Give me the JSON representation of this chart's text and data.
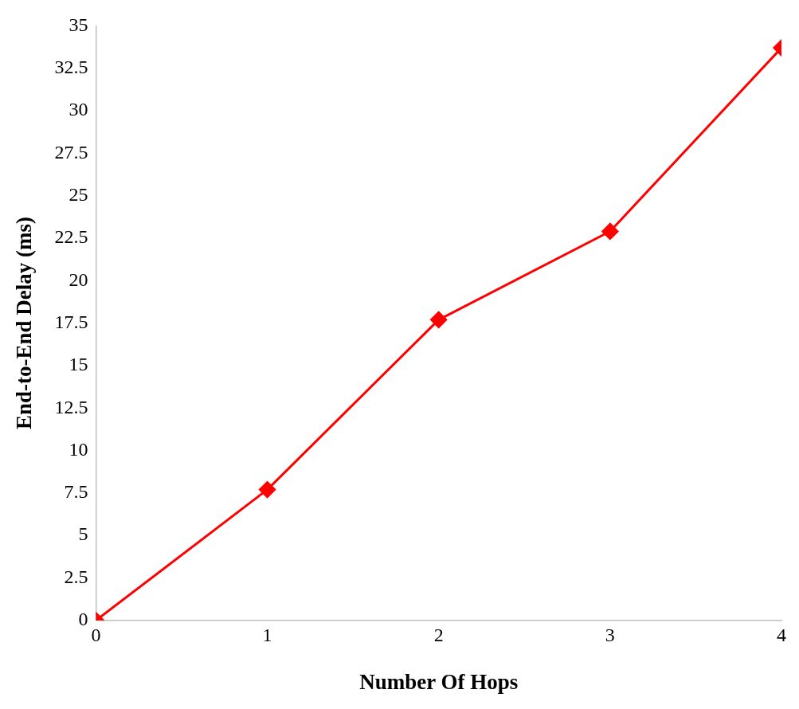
{
  "chart_data": {
    "type": "line",
    "xlabel": "Number Of Hops",
    "ylabel": "End-to-End Delay (ms)",
    "x": [
      0,
      1,
      2,
      3,
      4
    ],
    "series": [
      {
        "color": "#ff0000",
        "values": [
          0,
          7.7,
          17.7,
          22.9,
          33.7
        ]
      }
    ],
    "xlim": [
      0,
      4
    ],
    "xticks": [
      0,
      1,
      2,
      3,
      4
    ],
    "ylim": [
      0,
      35
    ],
    "yticks": [
      0,
      2.5,
      5,
      7.5,
      10,
      12.5,
      15,
      17.5,
      20,
      22.5,
      25,
      27.5,
      30,
      32.5,
      35
    ],
    "grid": false,
    "legend": false,
    "marker": "diamond",
    "line_style": "solid"
  }
}
